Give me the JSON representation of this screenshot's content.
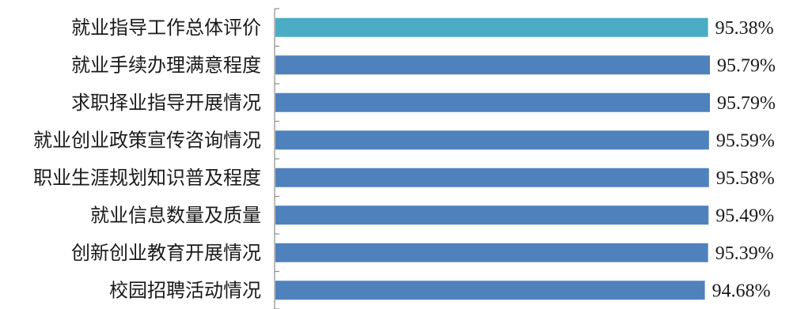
{
  "chart_data": {
    "type": "bar",
    "orientation": "horizontal",
    "categories": [
      "就业指导工作总体评价",
      "就业手续办理满意程度",
      "求职择业指导开展情况",
      "就业创业政策宣传咨询情况",
      "职业生涯规划知识普及程度",
      "就业信息数量及质量",
      "创新创业教育开展情况",
      "校园招聘活动情况"
    ],
    "values": [
      95.38,
      95.79,
      95.79,
      95.59,
      95.58,
      95.49,
      95.39,
      94.68
    ],
    "value_labels": [
      "95.38%",
      "95.79%",
      "95.79%",
      "95.59%",
      "95.58%",
      "95.49%",
      "95.39%",
      "94.68%"
    ],
    "unit": "%",
    "xlim": [
      0,
      95.79
    ],
    "grid": false,
    "legend": "none",
    "colors": {
      "highlight_bar": "#4bacc6",
      "bar": "#4f81bd",
      "axis": "#8c8c8c",
      "text": "#1a1a1a"
    },
    "highlight_index": 0
  }
}
